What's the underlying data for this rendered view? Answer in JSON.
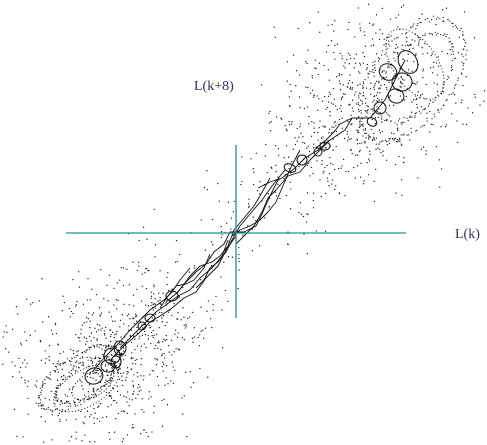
{
  "chart_data": {
    "type": "scatter",
    "title": "",
    "xlabel": "L(k)",
    "ylabel": "L(k+8)",
    "xlim": [
      -1,
      1
    ],
    "ylim": [
      -1,
      1
    ],
    "grid": false,
    "legend": "none",
    "axes_color": "#2a8c8c",
    "label_color": "#3a2a55",
    "point_color": "#111111",
    "description_series": [
      {
        "name": "",
        "cluster_centers": [
          [
            -0.72,
            -0.74
          ],
          [
            0.53,
            0.45
          ],
          [
            0.98,
            0.98
          ]
        ],
        "trend_slope": 1.0
      }
    ]
  }
}
